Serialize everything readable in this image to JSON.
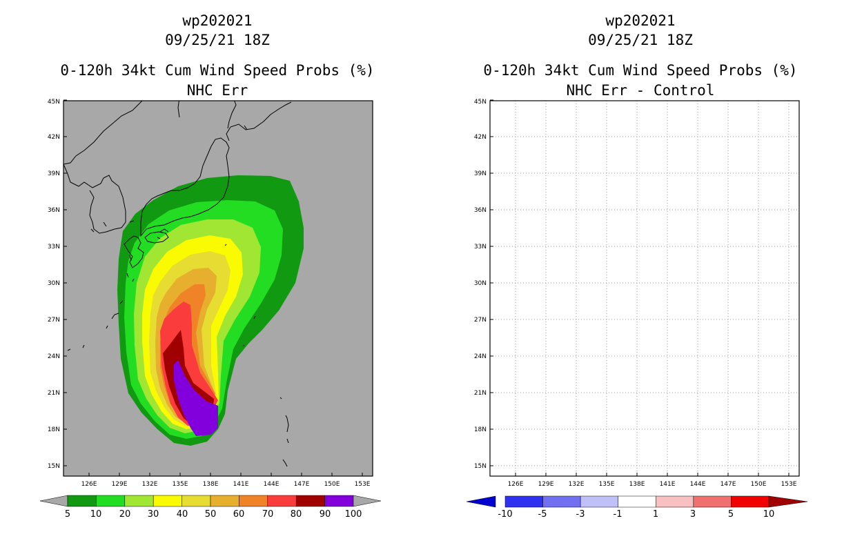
{
  "left": {
    "storm_id": "wp202021",
    "datetime": "09/25/21 18Z",
    "product": "0-120h 34kt Cum Wind Speed Probs (%)",
    "subtitle": "NHC Err",
    "background": "#a8a8a8",
    "colorbar": {
      "labels": [
        "5",
        "10",
        "20",
        "30",
        "40",
        "50",
        "60",
        "70",
        "80",
        "90",
        "100"
      ],
      "colors": [
        "#119911",
        "#22dd22",
        "#a0e632",
        "#fafa00",
        "#e6dc32",
        "#e6af2d",
        "#f08228",
        "#fa3c3c",
        "#a00000",
        "#8200dc"
      ]
    }
  },
  "right": {
    "storm_id": "wp202021",
    "datetime": "09/25/21 18Z",
    "product": "0-120h 34kt Cum Wind Speed Probs (%)",
    "subtitle": "NHC Err - Control",
    "background": "#ffffff",
    "colorbar": {
      "labels": [
        "-10",
        "-5",
        "-3",
        "-1",
        "1",
        "3",
        "5",
        "10"
      ],
      "colors": [
        "#0000d0",
        "#3030f0",
        "#7070f0",
        "#c0c0f8",
        "#ffffff",
        "#f8c0c0",
        "#f07070",
        "#f00000",
        "#a00000"
      ]
    }
  },
  "axes": {
    "lat_labels": [
      "15N",
      "18N",
      "21N",
      "24N",
      "27N",
      "30N",
      "33N",
      "36N",
      "39N",
      "42N",
      "45N"
    ],
    "lon_labels": [
      "126E",
      "129E",
      "132E",
      "135E",
      "138E",
      "141E",
      "144E",
      "147E",
      "150E",
      "153E"
    ]
  }
}
